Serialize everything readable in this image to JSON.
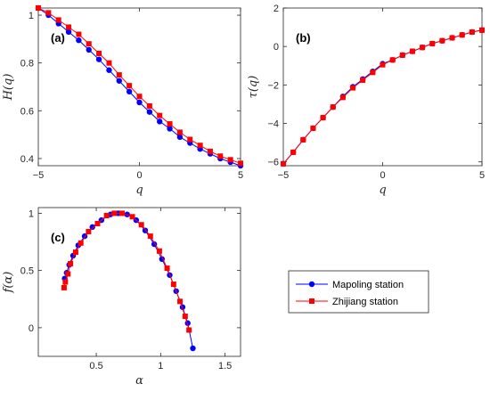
{
  "colors": {
    "series1": "#0000ff",
    "series2": "#ff0000",
    "axis": "#262626"
  },
  "legend": {
    "items": [
      {
        "label": "Mapoling station",
        "marker": "circle",
        "color": "#0000ff"
      },
      {
        "label": "Zhijiang station",
        "marker": "square",
        "color": "#ff0000"
      }
    ]
  },
  "chart_data": [
    {
      "type": "line",
      "panel": "(a)",
      "xlabel": "q",
      "ylabel": "H(q)",
      "xlim": [
        -5,
        5
      ],
      "ylim": [
        0.37,
        1.03
      ],
      "xticks": [
        -5,
        0,
        5
      ],
      "yticks": [
        0.4,
        0.6,
        0.8,
        1
      ],
      "series": [
        {
          "name": "Mapoling station",
          "x": [
            -5,
            -4.5,
            -4,
            -3.5,
            -3,
            -2.5,
            -2,
            -1.5,
            -1,
            -0.5,
            0,
            0.5,
            1,
            1.5,
            2,
            2.5,
            3,
            3.5,
            4,
            4.5,
            5
          ],
          "y": [
            1.03,
            1.0,
            0.965,
            0.93,
            0.895,
            0.855,
            0.815,
            0.77,
            0.725,
            0.68,
            0.635,
            0.595,
            0.555,
            0.525,
            0.49,
            0.465,
            0.44,
            0.42,
            0.4,
            0.385,
            0.37
          ]
        },
        {
          "name": "Zhijiang station",
          "x": [
            -5,
            -4.5,
            -4,
            -3.5,
            -3,
            -2.5,
            -2,
            -1.5,
            -1,
            -0.5,
            0,
            0.5,
            1,
            1.5,
            2,
            2.5,
            3,
            3.5,
            4,
            4.5,
            5
          ],
          "y": [
            1.03,
            1.01,
            0.98,
            0.95,
            0.92,
            0.88,
            0.84,
            0.8,
            0.75,
            0.705,
            0.66,
            0.62,
            0.58,
            0.545,
            0.51,
            0.48,
            0.455,
            0.43,
            0.41,
            0.395,
            0.38
          ]
        }
      ]
    },
    {
      "type": "line",
      "panel": "(b)",
      "xlabel": "q",
      "ylabel": "τ(q)",
      "xlim": [
        -5,
        5
      ],
      "ylim": [
        -6.2,
        2
      ],
      "xticks": [
        -5,
        0,
        5
      ],
      "yticks": [
        -6,
        -4,
        -2,
        0,
        2
      ],
      "series": [
        {
          "name": "Mapoling station",
          "x": [
            -5,
            -4.5,
            -4,
            -3.5,
            -3,
            -2.5,
            -2,
            -1.5,
            -1,
            -0.5,
            0,
            0.5,
            1,
            1.5,
            2,
            2.5,
            3,
            3.5,
            4,
            4.5,
            5
          ],
          "y": [
            -6.1,
            -5.5,
            -4.85,
            -4.25,
            -3.7,
            -3.15,
            -2.6,
            -2.1,
            -1.7,
            -1.3,
            -0.9,
            -0.7,
            -0.45,
            -0.25,
            -0.05,
            0.15,
            0.3,
            0.45,
            0.6,
            0.75,
            0.85
          ]
        },
        {
          "name": "Zhijiang station",
          "x": [
            -5,
            -4.5,
            -4,
            -3.5,
            -3,
            -2.5,
            -2,
            -1.5,
            -1,
            -0.5,
            0,
            0.5,
            1,
            1.5,
            2,
            2.5,
            3,
            3.5,
            4,
            4.5,
            5
          ],
          "y": [
            -6.1,
            -5.5,
            -4.85,
            -4.25,
            -3.7,
            -3.15,
            -2.65,
            -2.15,
            -1.75,
            -1.35,
            -0.95,
            -0.7,
            -0.45,
            -0.25,
            -0.05,
            0.15,
            0.3,
            0.45,
            0.6,
            0.75,
            0.85
          ]
        }
      ]
    },
    {
      "type": "line",
      "panel": "(c)",
      "xlabel": "α",
      "ylabel": "f(α)",
      "xlim": [
        0.05,
        1.62
      ],
      "ylim": [
        -0.25,
        1.05
      ],
      "xticks": [
        0.5,
        1,
        1.5
      ],
      "yticks": [
        0,
        0.5,
        1
      ],
      "series": [
        {
          "name": "Mapoling station",
          "x": [
            0.255,
            0.27,
            0.29,
            0.32,
            0.36,
            0.41,
            0.47,
            0.54,
            0.61,
            0.67,
            0.74,
            0.81,
            0.88,
            0.95,
            1.01,
            1.07,
            1.12,
            1.17,
            1.21,
            1.25
          ],
          "y": [
            0.43,
            0.48,
            0.55,
            0.63,
            0.72,
            0.8,
            0.88,
            0.94,
            0.99,
            1.0,
            0.99,
            0.94,
            0.85,
            0.73,
            0.6,
            0.46,
            0.32,
            0.18,
            0.04,
            -0.18
          ]
        },
        {
          "name": "Zhijiang station",
          "x": [
            0.25,
            0.26,
            0.28,
            0.3,
            0.34,
            0.38,
            0.44,
            0.51,
            0.58,
            0.64,
            0.7,
            0.78,
            0.85,
            0.92,
            0.99,
            1.05,
            1.1,
            1.15,
            1.19,
            1.22
          ],
          "y": [
            0.35,
            0.4,
            0.47,
            0.56,
            0.66,
            0.74,
            0.84,
            0.91,
            0.98,
            1.0,
            1.0,
            0.97,
            0.9,
            0.8,
            0.67,
            0.52,
            0.38,
            0.23,
            0.1,
            -0.02
          ]
        }
      ]
    }
  ]
}
